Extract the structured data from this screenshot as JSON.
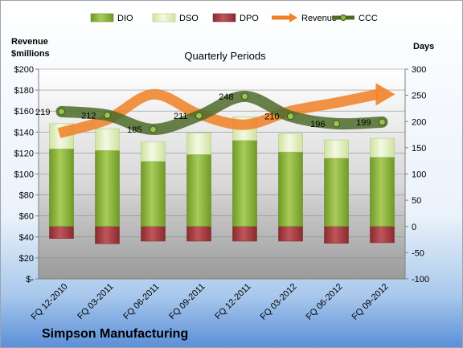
{
  "chart_data": {
    "type": "bar",
    "title": "Quarterly Periods",
    "company": "Simpson Manufacturing",
    "left_axis_label_line1": "Revenue",
    "left_axis_label_line2": "$millions",
    "right_axis_label": "Days",
    "categories": [
      "FQ 12-2010",
      "FQ 03-2011",
      "FQ 06-2011",
      "FQ 09-2011",
      "FQ 12-2011",
      "FQ 03-2012",
      "FQ 06-2012",
      "FQ 09-2012"
    ],
    "left_ylim": [
      0,
      200
    ],
    "left_ticks": [
      "$-",
      "$20",
      "$40",
      "$60",
      "$80",
      "$100",
      "$120",
      "$140",
      "$160",
      "$180",
      "$200"
    ],
    "right_ylim": [
      -100,
      300
    ],
    "right_ticks": [
      "-100",
      "-50",
      "0",
      "50",
      "100",
      "150",
      "200",
      "250",
      "300"
    ],
    "legend": [
      "DIO",
      "DSO",
      "DPO",
      "Revenue",
      "CCC"
    ],
    "series": [
      {
        "name": "DIO",
        "axis": "right",
        "values": [
          148,
          145,
          124,
          137,
          164,
          142,
          130,
          132
        ]
      },
      {
        "name": "DSO",
        "axis": "right",
        "values": [
          48,
          41,
          37,
          41,
          45,
          35,
          35,
          36
        ]
      },
      {
        "name": "DPO",
        "axis": "right",
        "values": [
          -23,
          -33,
          -28,
          -28,
          -28,
          -28,
          -32,
          -31
        ]
      },
      {
        "name": "Revenue",
        "axis": "left",
        "values": [
          139,
          152,
          176,
          157,
          147,
          160,
          168,
          176
        ]
      },
      {
        "name": "CCC",
        "axis": "right",
        "values": [
          219,
          212,
          185,
          211,
          248,
          210,
          196,
          199
        ]
      }
    ],
    "ccc_labels": [
      "219",
      "212",
      "185",
      "211",
      "248",
      "210",
      "196",
      "199"
    ],
    "colors": {
      "dio": "#8fb83a",
      "dso": "#e4f0c2",
      "dpo": "#a83a3f",
      "revenue": "#f0832a",
      "ccc": "#4e6b2a"
    },
    "grid": true,
    "legend_position": "top"
  }
}
